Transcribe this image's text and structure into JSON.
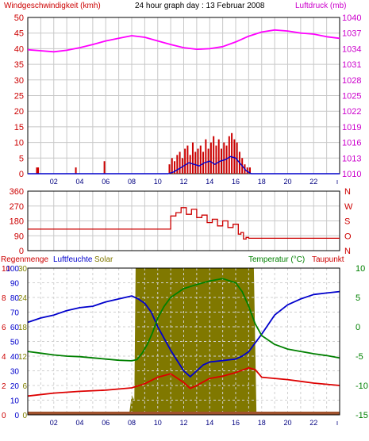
{
  "chart_data": [
    {
      "type": "line",
      "header": {
        "left_label": "Windgeschwindigkeit (kmh)",
        "title": "24 hour graph day : 13 Februar 2008",
        "right_label": "Luftdruck (mb)"
      },
      "colors": {
        "wind": "#cc0000",
        "wind_avg": "#0000cc",
        "pressure": "#ff00ff",
        "axis_left": "#cc0000",
        "axis_right": "#cc00cc"
      },
      "left_axis": {
        "ticks": [
          "0",
          "5",
          "10",
          "15",
          "20",
          "25",
          "30",
          "35",
          "40",
          "45",
          "50"
        ],
        "ylim": [
          0,
          50
        ]
      },
      "right_axis": {
        "ticks": [
          "1010",
          "1013",
          "1016",
          "1019",
          "1022",
          "1025",
          "1028",
          "1031",
          "1034",
          "1037",
          "1040"
        ],
        "ylim": [
          1010,
          1040
        ]
      },
      "x_ticks": [
        "02",
        "04",
        "06",
        "08",
        "10",
        "12",
        "14",
        "16",
        "18",
        "20",
        "22"
      ],
      "series": [
        {
          "name": "Luftdruck",
          "x": [
            0,
            1,
            2,
            3,
            4,
            5,
            6,
            7,
            8,
            9,
            10,
            11,
            12,
            13,
            14,
            15,
            16,
            17,
            18,
            19,
            20,
            21,
            22,
            23,
            24
          ],
          "values": [
            1033.8,
            1033.6,
            1033.4,
            1033.7,
            1034.2,
            1034.8,
            1035.5,
            1036.0,
            1036.5,
            1036.2,
            1035.5,
            1034.8,
            1034.2,
            1033.9,
            1034.0,
            1034.4,
            1035.3,
            1036.4,
            1037.2,
            1037.6,
            1037.4,
            1037.0,
            1036.8,
            1036.3,
            1036.0
          ]
        },
        {
          "name": "Wind",
          "x": [
            0.7,
            0.8,
            3.7,
            5.9,
            10.9,
            11.1,
            11.3,
            11.5,
            11.7,
            11.9,
            12.1,
            12.3,
            12.5,
            12.7,
            12.9,
            13.1,
            13.3,
            13.5,
            13.7,
            13.9,
            14.1,
            14.3,
            14.5,
            14.7,
            14.9,
            15.1,
            15.3,
            15.5,
            15.7,
            15.9,
            16.1,
            16.3,
            16.5,
            16.7,
            16.9,
            17.1
          ],
          "values": [
            2,
            2,
            2,
            4,
            3,
            5,
            4,
            6,
            7,
            5,
            8,
            9,
            6,
            10,
            7,
            8,
            9,
            7,
            11,
            8,
            10,
            12,
            9,
            11,
            8,
            10,
            9,
            12,
            13,
            11,
            10,
            7,
            5,
            3,
            2,
            2
          ]
        },
        {
          "name": "Wind (Mittel)",
          "x": [
            0,
            10.8,
            11.2,
            11.6,
            12,
            12.4,
            12.8,
            13.2,
            13.6,
            14,
            14.4,
            14.8,
            15.2,
            15.6,
            16,
            16.4,
            16.8,
            17.2,
            24
          ],
          "values": [
            0,
            0,
            0.5,
            1.5,
            2.5,
            3.5,
            3,
            2.5,
            3.5,
            4,
            3,
            4,
            4.5,
            5.5,
            5,
            3,
            1,
            0,
            0
          ]
        }
      ]
    },
    {
      "type": "line",
      "left_axis": {
        "ticks": [
          "360",
          "270",
          "180",
          "90",
          "0"
        ],
        "ylim": [
          0,
          360
        ]
      },
      "right_axis_labels": [
        "N",
        "W",
        "S",
        "O",
        "N"
      ],
      "colors": {
        "direction": "#cc0000"
      },
      "series": [
        {
          "name": "Windrichtung",
          "x": [
            0,
            10.9,
            11.0,
            11.4,
            11.8,
            12.2,
            12.6,
            13.0,
            13.4,
            13.8,
            14.2,
            14.6,
            15.0,
            15.4,
            15.8,
            16.2,
            16.4,
            16.6,
            16.8,
            17.0,
            17.2,
            24
          ],
          "values": [
            130,
            130,
            210,
            230,
            260,
            220,
            250,
            200,
            215,
            170,
            190,
            150,
            180,
            140,
            160,
            100,
            110,
            70,
            80,
            75,
            75,
            75
          ]
        }
      ]
    },
    {
      "type": "line",
      "header": {
        "rain_label": "Regenmenge",
        "humidity_label": "Luftfeuchte",
        "solar_label": "Solar",
        "temp_label": "Temperatur (°C)",
        "dew_label": "Taupunkt"
      },
      "colors": {
        "humidity": "#0000cc",
        "temperature": "#008000",
        "dewpoint": "#dd0000",
        "solar": "#807800",
        "rain": "#a0522d",
        "label_rain": "#cc0000",
        "label_humidity": "#0000cc",
        "label_solar": "#807800",
        "label_temp": "#008000",
        "label_dew": "#cc0000"
      },
      "axis_rain": {
        "ticks": [
          "0",
          "2",
          "4",
          "6",
          "8",
          "10"
        ]
      },
      "axis_humidity": {
        "ticks": [
          "0",
          "10",
          "20",
          "30",
          "40",
          "50",
          "60",
          "70",
          "80",
          "90",
          "100"
        ]
      },
      "axis_solar": {
        "ticks": [
          "0",
          "6",
          "12",
          "18",
          "24",
          "30"
        ]
      },
      "axis_temp": {
        "ticks": [
          "10",
          "5",
          "0",
          "-5",
          "-10",
          "-15"
        ],
        "ylim": [
          -15,
          10
        ]
      },
      "x_ticks": [
        "02",
        "04",
        "06",
        "08",
        "10",
        "12",
        "14",
        "16",
        "18",
        "20",
        "22"
      ],
      "series": [
        {
          "name": "Luftfeuchte",
          "x": [
            0,
            1,
            2,
            3,
            4,
            5,
            6,
            7,
            8,
            8.5,
            9,
            9.5,
            10,
            10.5,
            11,
            11.5,
            12,
            12.5,
            13,
            13.5,
            14,
            15,
            16,
            16.5,
            17,
            18,
            19,
            20,
            21,
            22,
            23,
            24
          ],
          "values": [
            63,
            66,
            68,
            71,
            73,
            74,
            77,
            79,
            81,
            79,
            76,
            70,
            60,
            52,
            44,
            37,
            30,
            26,
            30,
            34,
            36,
            37,
            38,
            40,
            43,
            55,
            68,
            75,
            79,
            82,
            83,
            84
          ]
        },
        {
          "name": "Temperatur",
          "x": [
            0,
            1,
            2,
            3,
            4,
            5,
            6,
            7,
            8,
            8.4,
            8.8,
            9.2,
            9.6,
            10,
            10.5,
            11,
            12,
            13,
            14,
            15,
            16,
            16.5,
            17,
            17.5,
            18,
            19,
            20,
            21,
            22,
            23,
            24
          ],
          "values": [
            -4.2,
            -4.5,
            -4.8,
            -5.0,
            -5.1,
            -5.3,
            -5.5,
            -5.7,
            -5.8,
            -5.6,
            -4.5,
            -3.0,
            -1.0,
            1.5,
            3.5,
            5.0,
            6.5,
            7.2,
            7.8,
            8.2,
            7.5,
            6.0,
            3.5,
            0.5,
            -1.5,
            -3.0,
            -3.8,
            -4.2,
            -4.6,
            -4.9,
            -5.3
          ]
        },
        {
          "name": "Taupunkt",
          "x": [
            0,
            2,
            4,
            6,
            8,
            9,
            10,
            11,
            12,
            12.5,
            13,
            14,
            15,
            16,
            17,
            17.5,
            18,
            20,
            22,
            24
          ],
          "values": [
            -11.8,
            -11.3,
            -11.0,
            -10.8,
            -10.4,
            -9.7,
            -8.6,
            -8.0,
            -9.5,
            -10.5,
            -10.0,
            -8.8,
            -8.4,
            -7.8,
            -7.0,
            -7.3,
            -8.6,
            -9.0,
            -9.6,
            -10.0
          ]
        },
        {
          "name": "Solar",
          "x": [
            7.8,
            8.0,
            8.2,
            8.3,
            8.4,
            8.6,
            8.8,
            9.0,
            9.2,
            16.4,
            16.6,
            16.8,
            17.0,
            17.2,
            17.4,
            17.6
          ],
          "values": [
            0,
            4,
            3,
            30,
            30,
            30,
            30,
            30,
            30,
            30,
            30,
            30,
            30,
            30,
            30,
            0
          ]
        },
        {
          "name": "Regenmenge",
          "x": [
            0,
            24
          ],
          "values": [
            0,
            0
          ]
        }
      ]
    }
  ]
}
